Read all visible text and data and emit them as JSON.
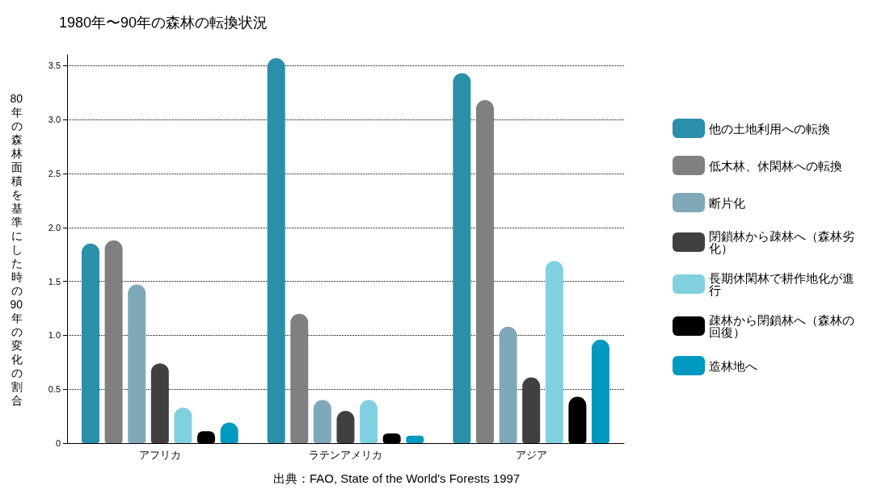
{
  "chart_data": {
    "type": "bar",
    "title": "1980年〜90年の森林の転換状況",
    "ylabel": "80年の森林面積を基準にした時の90年の変化の割合",
    "categories": [
      "アフリカ",
      "ラテンアメリカ",
      "アジア"
    ],
    "series": [
      {
        "name": "他の土地利用への転換",
        "color": "#2a8fa8",
        "values": [
          1.85,
          3.57,
          3.43
        ]
      },
      {
        "name": "低木林、休閑林への転換",
        "color": "#808080",
        "values": [
          1.88,
          1.2,
          3.18
        ]
      },
      {
        "name": "断片化",
        "color": "#7fa9b8",
        "values": [
          1.47,
          0.4,
          1.08
        ]
      },
      {
        "name": "閉鎖林から疎林へ（森林劣化）",
        "color": "#404040",
        "values": [
          0.74,
          0.3,
          0.61
        ]
      },
      {
        "name": "長期休閑林で耕作地化が進行",
        "color": "#80d0e0",
        "values": [
          0.33,
          0.4,
          1.69
        ]
      },
      {
        "name": "疎林から閉鎖林へ（森林の回復）",
        "color": "#000000",
        "values": [
          0.11,
          0.09,
          0.43
        ]
      },
      {
        "name": "造林地へ",
        "color": "#0099c0",
        "values": [
          0.19,
          0.07,
          0.96
        ]
      }
    ],
    "ylim": [
      0,
      3.6
    ],
    "yticks": [
      {
        "value": 0,
        "label": "0"
      },
      0.5,
      {
        "value": 1,
        "label": "1.0"
      },
      1.5,
      {
        "value": 2,
        "label": "2.0"
      },
      2.5,
      {
        "value": 3,
        "label": "3.0"
      },
      3.5
    ],
    "grid": "y",
    "legend": "right",
    "annotations": [
      "出典：FAO, State of the World's Forests 1997"
    ]
  }
}
